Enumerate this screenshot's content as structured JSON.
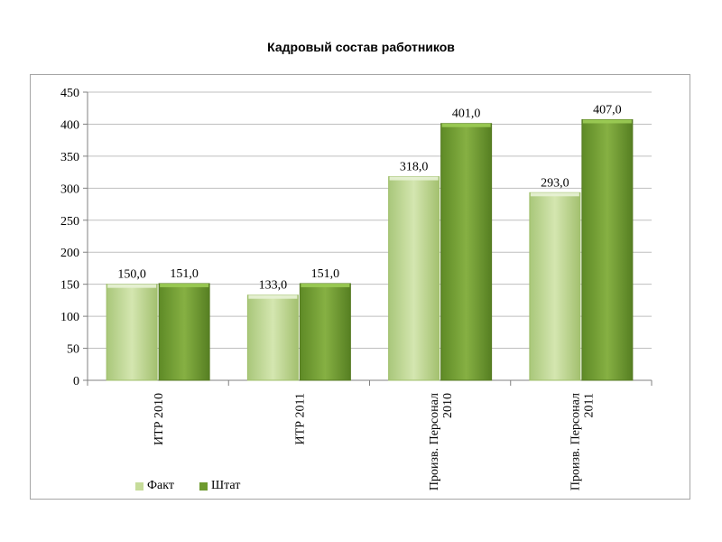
{
  "chart_data": {
    "type": "bar",
    "title": "Кадровый состав работников",
    "categories": [
      "ИТР 2010",
      "ИТР 2011",
      "Произв. Персонал 2010",
      "Произв. Персонал 2011"
    ],
    "category_lines": [
      [
        "ИТР 2010"
      ],
      [
        "ИТР 2011"
      ],
      [
        "Произв. Персонал",
        "2010"
      ],
      [
        "Произв. Персонал",
        "2011"
      ]
    ],
    "series": [
      {
        "name": "Факт",
        "values": [
          150.0,
          133.0,
          318.0,
          293.0
        ],
        "labels": [
          "150,0",
          "133,0",
          "318,0",
          "293,0"
        ],
        "color": "#c6dc9a",
        "color_dark": "#9fbf6a"
      },
      {
        "name": "Штат",
        "values": [
          151.0,
          151.0,
          401.0,
          407.0
        ],
        "labels": [
          "151,0",
          "151,0",
          "401,0",
          "407,0"
        ],
        "color": "#7ea83a",
        "color_dark": "#557a22"
      }
    ],
    "ylim": [
      0,
      450
    ],
    "yticks": [
      0,
      50,
      100,
      150,
      200,
      250,
      300,
      350,
      400,
      450
    ],
    "grid": true,
    "legend": "bottom-left"
  }
}
